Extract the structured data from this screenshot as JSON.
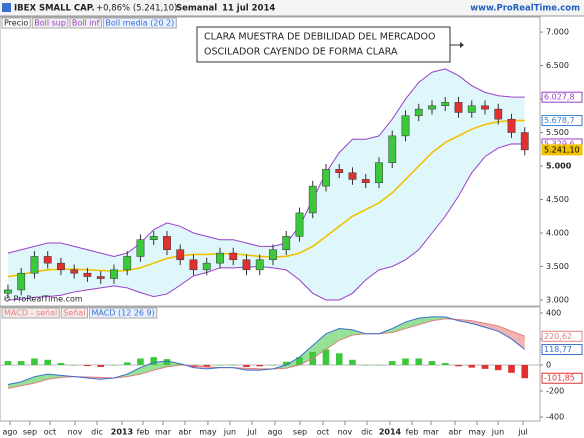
{
  "header": {
    "title": "IBEX SMALL CAP.",
    "change": "+0,86% (5.241,10)",
    "period": "Semanal",
    "date": "11 jul 2014",
    "site": "www.ProRealTime.com"
  },
  "chart_data": [
    {
      "type": "candlestick",
      "watermark": "© ProRealTime.com",
      "annotation": [
        "CLARA MUESTRA DE DEBILIDAD DEL MERCADOO",
        "OSCILADOR CAYENDO DE FORMA CLARA"
      ],
      "candles": {
        "name": "Precio",
        "up_color": "#3cc83c",
        "down_color": "#e03030",
        "open": [
          3100,
          3150,
          3400,
          3650,
          3550,
          3450,
          3400,
          3350,
          3320,
          3450,
          3650,
          3900,
          3950,
          3750,
          3600,
          3450,
          3550,
          3700,
          3600,
          3450,
          3600,
          3750,
          3950,
          4300,
          4700,
          4950,
          4900,
          4800,
          4750,
          5050,
          5450,
          5750,
          5850,
          5900,
          5950,
          5800,
          5900,
          5850,
          5700,
          5500
        ],
        "high": [
          3230,
          3480,
          3730,
          3730,
          3630,
          3530,
          3480,
          3430,
          3530,
          3730,
          3980,
          4030,
          4030,
          3830,
          3680,
          3630,
          3780,
          3780,
          3680,
          3680,
          3830,
          4030,
          4380,
          4780,
          5030,
          5030,
          4980,
          4880,
          5130,
          5530,
          5830,
          5930,
          5980,
          6030,
          6030,
          5980,
          5980,
          5930,
          5780,
          5580
        ],
        "low": [
          3020,
          3070,
          3320,
          3470,
          3370,
          3320,
          3270,
          3240,
          3240,
          3370,
          3570,
          3820,
          3670,
          3520,
          3370,
          3370,
          3470,
          3520,
          3370,
          3370,
          3520,
          3670,
          3870,
          4220,
          4620,
          4820,
          4720,
          4670,
          4670,
          4970,
          5370,
          5670,
          5770,
          5820,
          5720,
          5720,
          5770,
          5620,
          5420,
          5160
        ],
        "close": [
          3150,
          3400,
          3650,
          3550,
          3450,
          3400,
          3350,
          3320,
          3450,
          3650,
          3900,
          3950,
          3750,
          3600,
          3450,
          3550,
          3700,
          3600,
          3450,
          3600,
          3750,
          3950,
          4300,
          4700,
          4950,
          4900,
          4800,
          4750,
          5050,
          5450,
          5750,
          5850,
          5900,
          5950,
          5800,
          5900,
          5850,
          5700,
          5500,
          5241.1
        ]
      },
      "series": [
        {
          "name": "Boll sup",
          "color": "#9a3fc8",
          "values": [
            3700,
            3750,
            3800,
            3850,
            3850,
            3800,
            3750,
            3700,
            3650,
            3700,
            3850,
            4050,
            4150,
            4100,
            4000,
            3950,
            3900,
            3900,
            3850,
            3800,
            3800,
            3850,
            4100,
            4500,
            4900,
            5200,
            5400,
            5400,
            5450,
            5700,
            6000,
            6250,
            6400,
            6450,
            6350,
            6200,
            6100,
            6050,
            6030,
            6027.8
          ]
        },
        {
          "name": "Boll inf",
          "color": "#9a3fc8",
          "values": [
            3000,
            3010,
            3040,
            3050,
            3070,
            3120,
            3150,
            3180,
            3210,
            3180,
            3110,
            3050,
            3090,
            3220,
            3360,
            3410,
            3480,
            3480,
            3490,
            3500,
            3480,
            3450,
            3300,
            3100,
            3000,
            3000,
            3100,
            3300,
            3450,
            3500,
            3600,
            3750,
            4000,
            4250,
            4550,
            4900,
            5140,
            5270,
            5330,
            5329.6
          ]
        },
        {
          "name": "Boll media (20 2)",
          "color": "#f2c200",
          "values": [
            3350,
            3380,
            3420,
            3450,
            3460,
            3460,
            3450,
            3440,
            3430,
            3440,
            3480,
            3550,
            3620,
            3660,
            3680,
            3680,
            3690,
            3690,
            3670,
            3650,
            3640,
            3650,
            3700,
            3800,
            3950,
            4100,
            4250,
            4350,
            4450,
            4600,
            4800,
            5000,
            5200,
            5350,
            5450,
            5550,
            5620,
            5660,
            5680,
            5678.7
          ]
        }
      ],
      "band_fill": "#dff7fb",
      "markers": [
        {
          "value": 6027.8,
          "label": "6.027,8",
          "color": "#9a3fc8"
        },
        {
          "value": 5678.7,
          "label": "5.678,7",
          "color": "#3a7fd0"
        },
        {
          "value": 5329.6,
          "label": "5.329,6",
          "color": "#9a3fc8"
        },
        {
          "value": 5241.1,
          "label": "5.241,10",
          "color": "#f2c200"
        }
      ],
      "xlim": [
        -0.6,
        40.15
      ],
      "ylim": [
        2925,
        7210
      ],
      "yticks": [
        {
          "value": 3000,
          "label": "3.000"
        },
        {
          "value": 3500,
          "label": "3.500"
        },
        {
          "value": 4000,
          "label": "4.000"
        },
        {
          "value": 4500,
          "label": "4.500"
        },
        {
          "value": 5000,
          "label": "5.000"
        },
        {
          "value": 5500,
          "label": "5.500"
        },
        {
          "value": 6000,
          "label": "6.000"
        },
        {
          "value": 6500,
          "label": "6.500"
        },
        {
          "value": 7000,
          "label": "7.000"
        }
      ]
    },
    {
      "type": "macd",
      "histogram": {
        "name": "MACD - señal",
        "up_color": "#3cc83c",
        "down_color": "#e03030",
        "values": [
          30,
          30,
          50,
          40,
          15,
          0,
          -8,
          -15,
          0,
          20,
          50,
          60,
          45,
          10,
          -15,
          -15,
          0,
          0,
          -15,
          -10,
          0,
          25,
          60,
          100,
          120,
          90,
          40,
          0,
          0,
          30,
          50,
          50,
          30,
          15,
          -10,
          -20,
          -30,
          -40,
          -60,
          -101.85
        ]
      },
      "series": [
        {
          "name": "Señal",
          "color": "#e08080",
          "values": [
            -180,
            -160,
            -140,
            -110,
            -95,
            -90,
            -92,
            -95,
            -100,
            -90,
            -70,
            -40,
            -15,
            0,
            -5,
            -15,
            -20,
            -20,
            -25,
            -30,
            -30,
            -25,
            0,
            50,
            120,
            190,
            230,
            240,
            240,
            250,
            280,
            310,
            340,
            355,
            350,
            340,
            320,
            300,
            260,
            220.62
          ]
        },
        {
          "name": "MACD (12 26 9)",
          "color": "#3a6fd0",
          "values": [
            -150,
            -130,
            -90,
            -70,
            -80,
            -90,
            -100,
            -110,
            -100,
            -70,
            -20,
            20,
            30,
            10,
            -20,
            -30,
            -20,
            -20,
            -40,
            -40,
            -30,
            0,
            60,
            150,
            240,
            280,
            270,
            240,
            240,
            280,
            330,
            360,
            370,
            370,
            340,
            320,
            290,
            260,
            200,
            118.77
          ]
        }
      ],
      "markers": [
        {
          "value": 220.62,
          "label": "220,62",
          "color": "#e08080"
        },
        {
          "value": 118.77,
          "label": "118,77",
          "color": "#3a6fd0"
        },
        {
          "value": -101.85,
          "label": "-101,85",
          "color": "#e03030"
        }
      ],
      "xlim": [
        -0.6,
        40.15
      ],
      "ylim": [
        -423,
        438
      ],
      "yticks": [
        400,
        200,
        0,
        -200,
        -400
      ],
      "xticks": [
        {
          "value": 0.15,
          "label": "ago"
        },
        {
          "value": 1.66,
          "label": "sep"
        },
        {
          "value": 3.17,
          "label": "oct"
        },
        {
          "value": 5.06,
          "label": "nov"
        },
        {
          "value": 6.72,
          "label": "dic"
        },
        {
          "value": 8.6,
          "label": "2013"
        },
        {
          "value": 10.19,
          "label": "feb"
        },
        {
          "value": 11.7,
          "label": "mar"
        },
        {
          "value": 13.36,
          "label": "abr"
        },
        {
          "value": 15.09,
          "label": "may"
        },
        {
          "value": 16.75,
          "label": "jun"
        },
        {
          "value": 18.42,
          "label": "jul"
        },
        {
          "value": 20.15,
          "label": "ago"
        },
        {
          "value": 22.04,
          "label": "sep"
        },
        {
          "value": 23.77,
          "label": "oct"
        },
        {
          "value": 25.43,
          "label": "nov"
        },
        {
          "value": 27.09,
          "label": "dic"
        },
        {
          "value": 28.83,
          "label": "2014"
        },
        {
          "value": 30.49,
          "label": "feb"
        },
        {
          "value": 31.92,
          "label": "mar"
        },
        {
          "value": 33.74,
          "label": "abr"
        },
        {
          "value": 35.4,
          "label": "may"
        },
        {
          "value": 36.98,
          "label": "jun"
        },
        {
          "value": 38.87,
          "label": "jul"
        }
      ]
    }
  ]
}
